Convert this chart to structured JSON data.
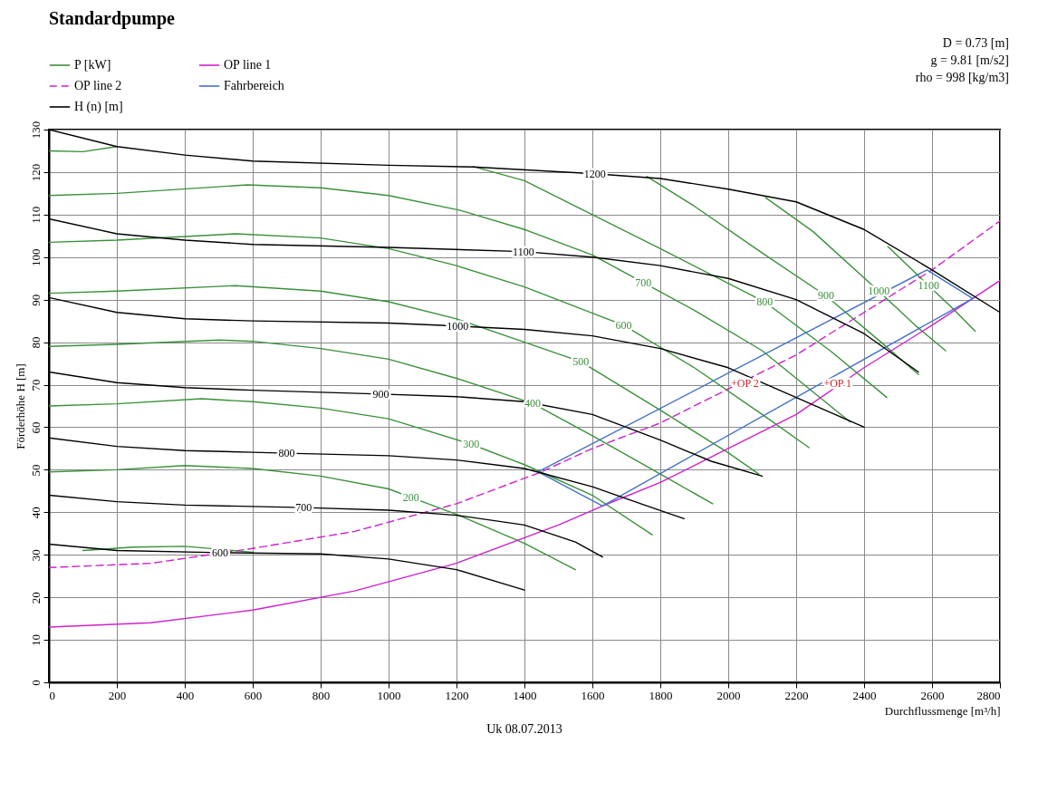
{
  "chart_data": {
    "type": "line",
    "title": "Standardpumpe",
    "xlabel": "Durchflussmenge [m³/h]",
    "ylabel": "Förderhöhe H [m]",
    "xlim": [
      0,
      2800
    ],
    "xticks": [
      0,
      200,
      400,
      600,
      800,
      1000,
      1200,
      1400,
      1600,
      1800,
      2000,
      2200,
      2400,
      2600,
      2800
    ],
    "ylim": [
      0,
      130
    ],
    "yticks": [
      0,
      10,
      20,
      30,
      40,
      50,
      60,
      70,
      80,
      90,
      100,
      110,
      120,
      130
    ],
    "grid": true,
    "legend": "top",
    "line_style": "solid",
    "series": [
      {
        "name": "P [kW]",
        "color": "#3a913a",
        "x": [
          0,
          200,
          400,
          600,
          800,
          1000,
          1066,
          1200,
          1400,
          1550
        ],
        "values": [
          49.5,
          50,
          51,
          50.3,
          48.5,
          45.5,
          43.5,
          39.5,
          32.7,
          26.5
        ]
      },
      {
        "color": "#3a913a",
        "x": [
          0,
          200,
          450,
          600,
          800,
          1000,
          1243,
          1400,
          1600,
          1776
        ],
        "values": [
          65,
          65.5,
          66.7,
          66,
          64.5,
          62,
          56,
          51.2,
          44,
          34.7
        ]
      },
      {
        "color": "#3a913a",
        "x": [
          0,
          200,
          500,
          600,
          800,
          1000,
          1200,
          1424,
          1600,
          1800,
          1954
        ],
        "values": [
          79,
          79.5,
          80.5,
          80.2,
          78.5,
          76,
          71.5,
          65.6,
          58,
          49,
          42
        ]
      },
      {
        "color": "#3a913a",
        "x": [
          0,
          200,
          550,
          800,
          1000,
          1200,
          1400,
          1566,
          1800,
          2000,
          2090
        ],
        "values": [
          91.5,
          92,
          93.3,
          92,
          89.5,
          85.5,
          80,
          75.4,
          64,
          54,
          49
        ]
      },
      {
        "color": "#3a913a",
        "x": [
          0,
          200,
          550,
          800,
          1000,
          1200,
          1400,
          1692,
          1900,
          2100,
          2238
        ],
        "values": [
          103.5,
          104,
          105.5,
          104.5,
          102,
          98,
          93,
          84,
          74,
          63,
          55.2
        ]
      },
      {
        "color": "#3a913a",
        "x": [
          0,
          200,
          585,
          800,
          1000,
          1211,
          1400,
          1600,
          1750,
          1900,
          2100,
          2359
        ],
        "values": [
          114.5,
          115,
          117,
          116.3,
          114.5,
          111,
          106.5,
          100.5,
          94,
          87.5,
          78,
          61.2
        ]
      },
      {
        "color": "#3a913a",
        "x": [
          1250,
          1400,
          1600,
          1800,
          2107,
          2300,
          2467
        ],
        "values": [
          121.3,
          118,
          110,
          102,
          89.5,
          78,
          67
        ]
      },
      {
        "color": "#3a913a",
        "x": [
          1760,
          1900,
          2100,
          2288,
          2450,
          2560
        ],
        "values": [
          119,
          112,
          101,
          90.9,
          80,
          72.4
        ]
      },
      {
        "color": "#3a913a",
        "x": [
          2110,
          2250,
          2443,
          2550,
          2640
        ],
        "values": [
          114,
          106,
          92,
          84,
          78
        ]
      },
      {
        "color": "#3a913a",
        "x": [
          2470,
          2590,
          2660,
          2727
        ],
        "values": [
          102.5,
          93.3,
          88,
          82.6
        ]
      },
      {
        "color": "#3a913a",
        "x": [
          0,
          100,
          200
        ],
        "values": [
          125,
          124.8,
          126
        ]
      },
      {
        "color": "#3a913a",
        "x": [
          100,
          250,
          400,
          600
        ],
        "values": [
          31,
          31.8,
          32,
          30.6
        ]
      },
      {
        "name": "OP line 1",
        "color": "#cc22cc",
        "x": [
          0,
          300,
          600,
          900,
          1200,
          1500,
          1630,
          1800,
          2000,
          2200,
          2400,
          2600,
          2800
        ],
        "values": [
          13,
          14,
          17,
          21.5,
          28,
          37,
          41.5,
          47,
          55,
          63,
          74,
          84,
          94.5
        ]
      },
      {
        "name": "OP line 2",
        "color": "#cc22cc",
        "line_style": "dashed",
        "x": [
          0,
          300,
          600,
          900,
          1200,
          1450,
          1600,
          1800,
          2000,
          2200,
          2400,
          2600,
          2800
        ],
        "values": [
          27,
          28,
          31.5,
          35.5,
          42,
          49.5,
          55,
          61,
          69,
          77,
          87,
          97,
          108.5
        ]
      },
      {
        "name": "Fahrbereich",
        "color": "#4472c4",
        "x": [
          1440,
          2585,
          2720
        ],
        "values": [
          49.5,
          97,
          90.3
        ]
      },
      {
        "color": "#4472c4",
        "x": [
          1440,
          1630,
          2720
        ],
        "values": [
          49.5,
          41.5,
          90.3
        ]
      },
      {
        "name": "H (n) [m]",
        "color": "#000000",
        "x": [
          0,
          200,
          400,
          600,
          1000,
          1250,
          1607,
          1800,
          2000,
          2200,
          2400,
          2600,
          2800
        ],
        "values": [
          130,
          126,
          124,
          122.6,
          121.6,
          121.2,
          119.6,
          118.5,
          116,
          113,
          106.5,
          97,
          87
        ]
      },
      {
        "color": "#000000",
        "x": [
          0,
          200,
          400,
          600,
          1000,
          1397,
          1600,
          1800,
          2000,
          2200,
          2400,
          2560
        ],
        "values": [
          109,
          105.5,
          104,
          103,
          102.3,
          101.3,
          100,
          98,
          95,
          90,
          82,
          73
        ]
      },
      {
        "color": "#000000",
        "x": [
          0,
          200,
          400,
          600,
          1000,
          1203,
          1400,
          1600,
          1800,
          2000,
          2200,
          2400
        ],
        "values": [
          90.5,
          87,
          85.5,
          85,
          84.5,
          83.8,
          83,
          81.5,
          78.5,
          74,
          67,
          60
        ]
      },
      {
        "color": "#000000",
        "x": [
          0,
          200,
          400,
          600,
          977,
          1200,
          1400,
          1600,
          1800,
          1950,
          2100
        ],
        "values": [
          73,
          70.5,
          69.3,
          68.7,
          67.8,
          67.2,
          66,
          63,
          57,
          52,
          48.5
        ]
      },
      {
        "color": "#000000",
        "x": [
          0,
          200,
          400,
          600,
          700,
          1000,
          1200,
          1400,
          1600,
          1750,
          1870
        ],
        "values": [
          57.5,
          55.5,
          54.5,
          54.1,
          53.9,
          53.3,
          52.3,
          50.3,
          46,
          41.8,
          38.5
        ]
      },
      {
        "color": "#000000",
        "x": [
          0,
          200,
          400,
          750,
          1000,
          1200,
          1400,
          1550,
          1630
        ],
        "values": [
          44,
          42.5,
          41.7,
          41.1,
          40.5,
          39.3,
          37,
          33,
          29.5
        ]
      },
      {
        "color": "#000000",
        "x": [
          0,
          200,
          504,
          800,
          1000,
          1200,
          1400
        ],
        "values": [
          32.5,
          31,
          30.5,
          30.2,
          29,
          26.5,
          21.7
        ]
      }
    ],
    "annotations": [
      {
        "text": "200",
        "x": 1066,
        "y": 43.5
      },
      {
        "text": "300",
        "x": 1243,
        "y": 56
      },
      {
        "text": "400",
        "x": 1424,
        "y": 65.6
      },
      {
        "text": "500",
        "x": 1566,
        "y": 75.4
      },
      {
        "text": "600",
        "x": 1692,
        "y": 84
      },
      {
        "text": "700",
        "x": 1750,
        "y": 94
      },
      {
        "text": "800",
        "x": 2107,
        "y": 89.5
      },
      {
        "text": "900",
        "x": 2288,
        "y": 90.9
      },
      {
        "text": "1000",
        "x": 2443,
        "y": 92
      },
      {
        "text": "1100",
        "x": 2590,
        "y": 93.3
      },
      {
        "text": "1200",
        "x": 1607,
        "y": 119.6
      },
      {
        "text": "1100",
        "x": 1397,
        "y": 101.3
      },
      {
        "text": "1000",
        "x": 1203,
        "y": 83.8
      },
      {
        "text": "900",
        "x": 977,
        "y": 67.8
      },
      {
        "text": "800",
        "x": 700,
        "y": 53.9
      },
      {
        "text": "700",
        "x": 750,
        "y": 41.1
      },
      {
        "text": "600",
        "x": 504,
        "y": 30.5
      },
      {
        "text": "+OP 2",
        "x": 2049,
        "y": 70.4
      },
      {
        "text": "+OP 1",
        "x": 2322,
        "y": 70.4
      },
      "D = 0.73 [m]",
      "g = 9.81 [m/s2]",
      "rho = 998 [kg/m3]",
      "Uk     08.07.2013"
    ]
  }
}
